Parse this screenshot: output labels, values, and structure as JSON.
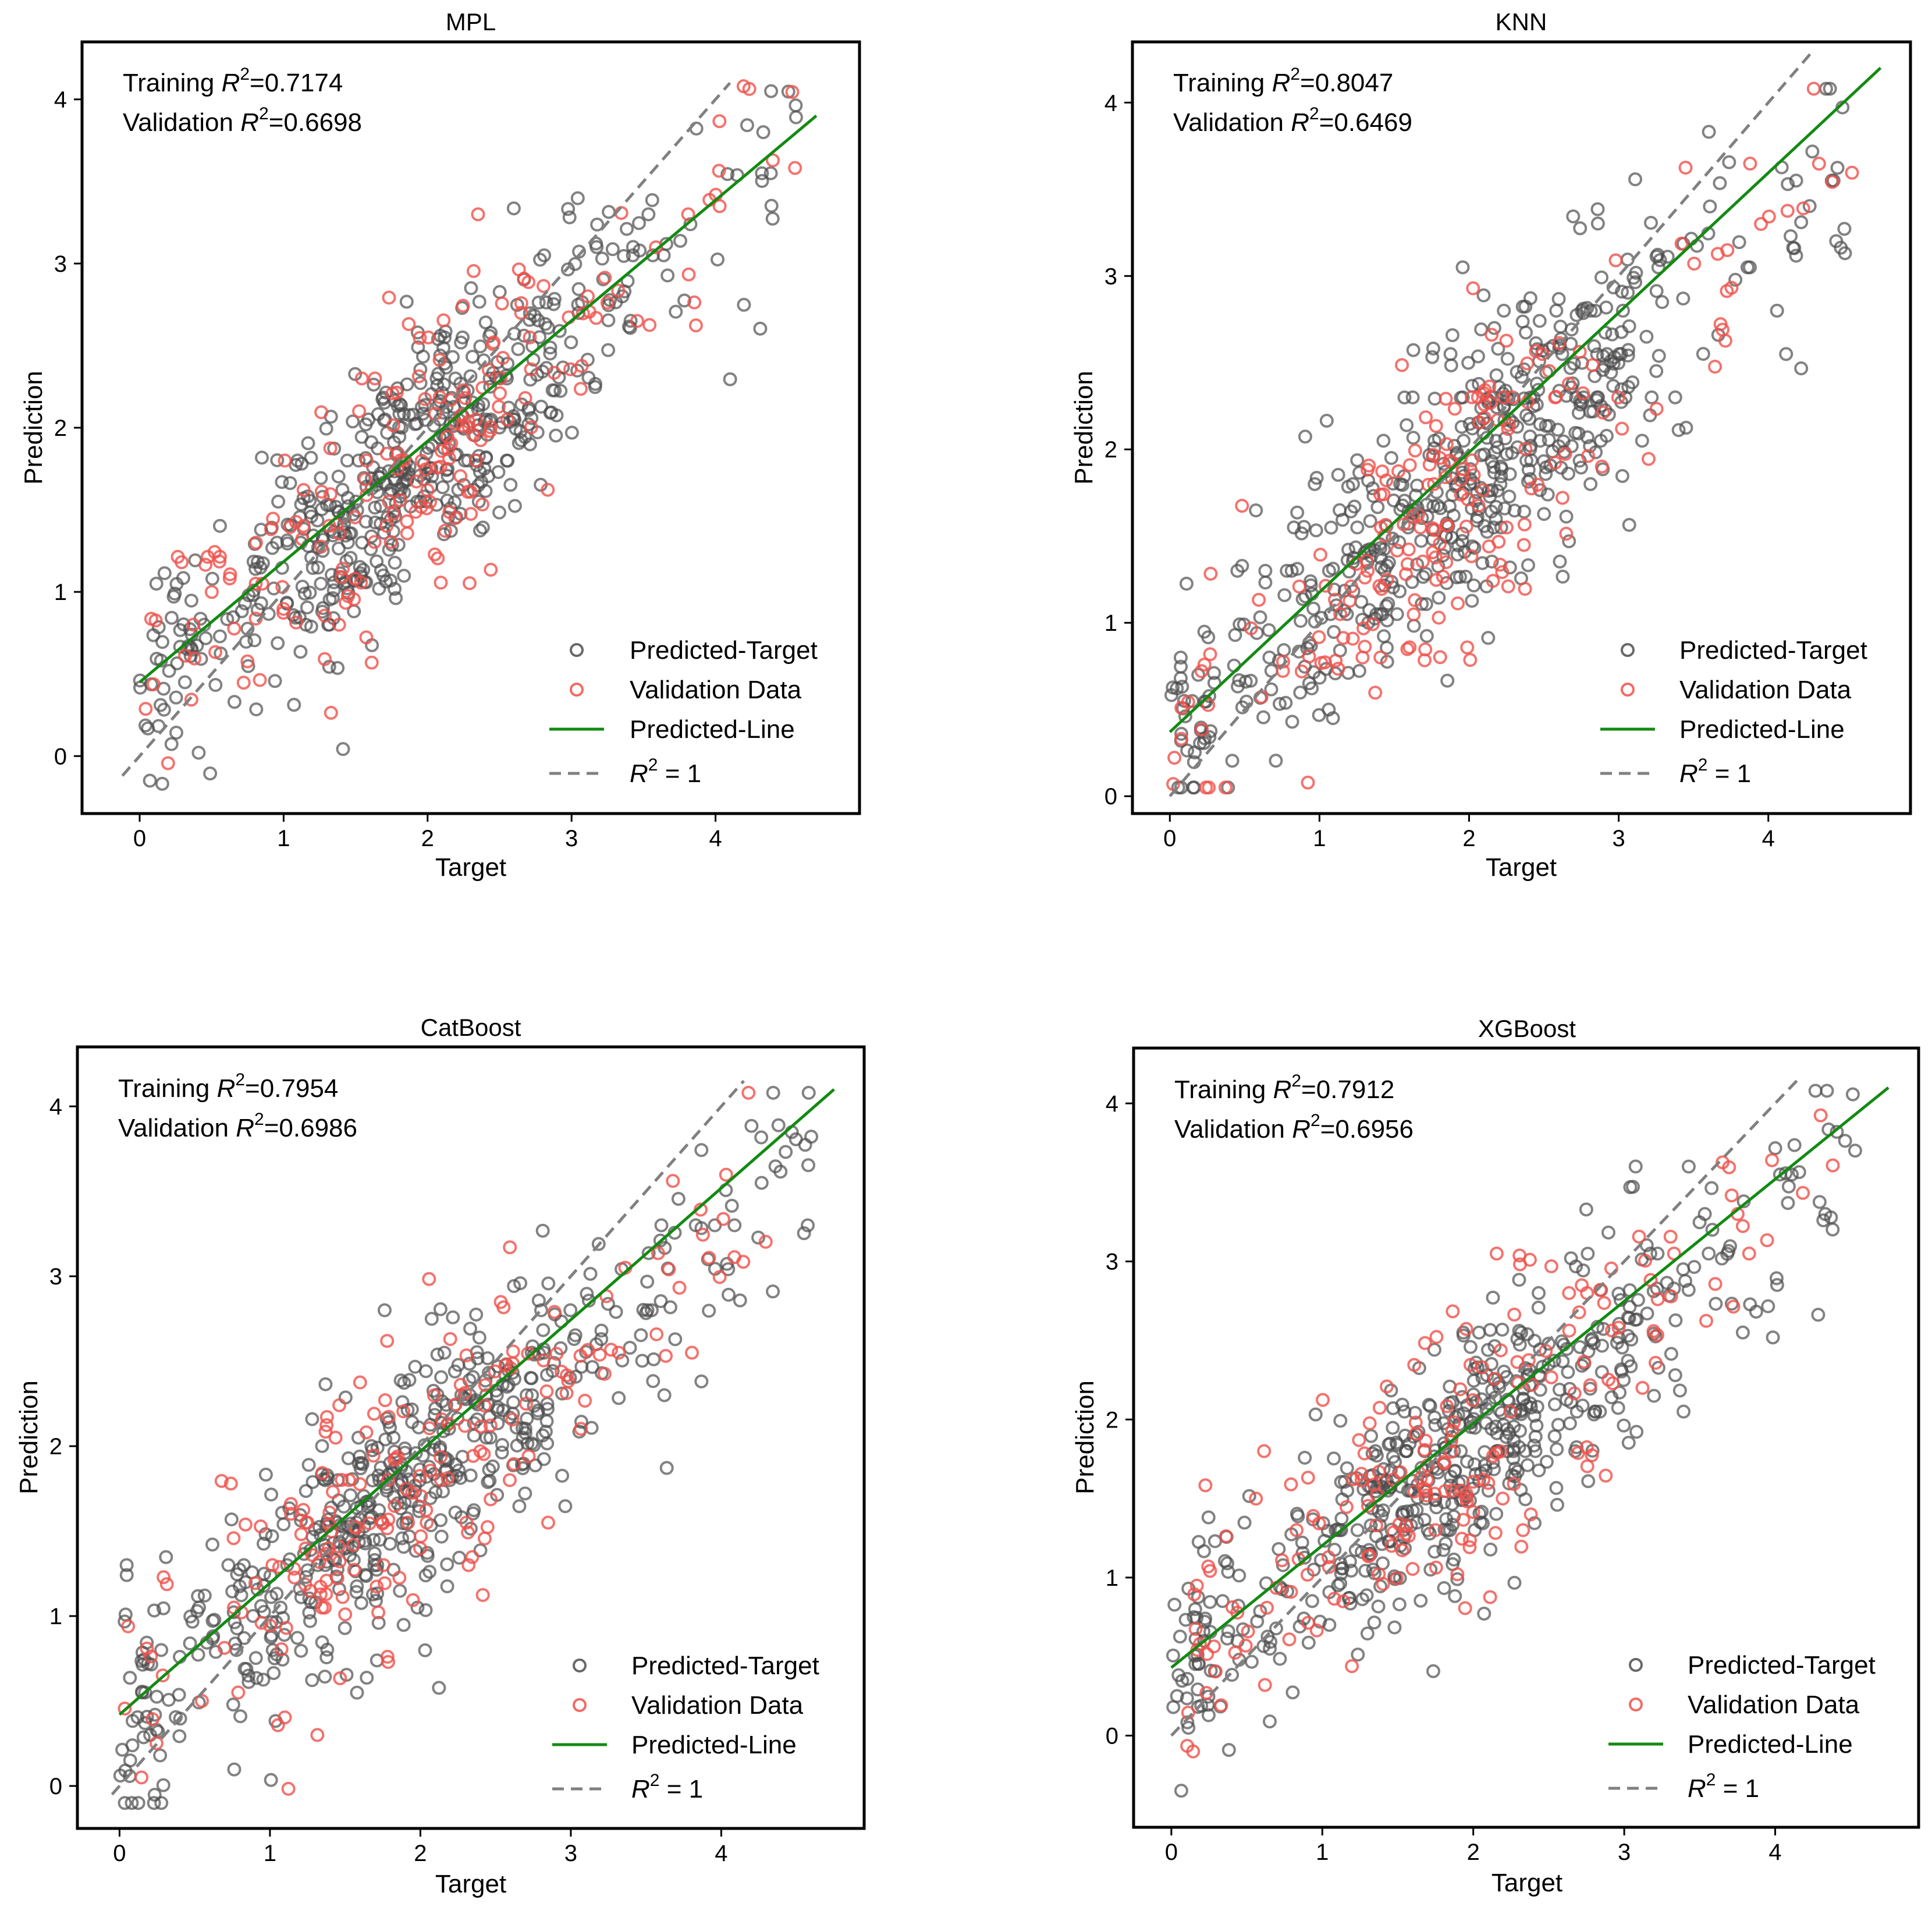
{
  "figure": {
    "panel_count": 4
  },
  "legend": {
    "items": [
      "Predicted-Target",
      "Validation Data",
      "Predicted-Line",
      "R^2 = 1"
    ],
    "ideal_label_prefix": "R",
    "ideal_label_exp": "2",
    "ideal_label_suffix": " = 1"
  },
  "colors": {
    "train": "#4d4d4d",
    "validation": "#f0504a",
    "fit": "#138a13",
    "ideal": "#808080"
  },
  "chart_data": [
    {
      "type": "scatter",
      "title": "MPL",
      "xlabel": "Target",
      "ylabel": "Prediction",
      "xlim": [
        -0.4,
        5.0
      ],
      "ylim": [
        -0.35,
        4.35
      ],
      "xticks": [
        0,
        1,
        2,
        3,
        4
      ],
      "yticks": [
        0,
        1,
        2,
        3,
        4
      ],
      "training_r2_label": "Training",
      "training_r2_value": "=0.7174",
      "validation_r2_label": "Validation",
      "validation_r2_value": "=0.6698",
      "fit_line": {
        "x": [
          0.0,
          4.7
        ],
        "y": [
          0.45,
          3.9
        ]
      },
      "ideal_line": {
        "x": [
          -0.12,
          4.1
        ],
        "y": [
          -0.12,
          4.1
        ]
      },
      "legend_position": "lower-right",
      "seed": 11
    },
    {
      "type": "scatter",
      "title": "KNN",
      "xlabel": "Target",
      "ylabel": "Prediction",
      "xlim": [
        -0.25,
        4.95
      ],
      "ylim": [
        -0.1,
        4.35
      ],
      "xticks": [
        0,
        1,
        2,
        3,
        4
      ],
      "yticks": [
        0,
        1,
        2,
        3,
        4
      ],
      "training_r2_label": "Training",
      "training_r2_value": "=0.8047",
      "validation_r2_label": "Validation",
      "validation_r2_value": "=0.6469",
      "fit_line": {
        "x": [
          0.0,
          4.75
        ],
        "y": [
          0.37,
          4.2
        ]
      },
      "ideal_line": {
        "x": [
          0.0,
          4.3
        ],
        "y": [
          0.0,
          4.3
        ]
      },
      "legend_position": "lower-right",
      "seed": 23
    },
    {
      "type": "scatter",
      "title": "CatBoost",
      "xlabel": "Target",
      "ylabel": "Prediction",
      "xlim": [
        -0.28,
        4.95
      ],
      "ylim": [
        -0.25,
        4.35
      ],
      "xticks": [
        0,
        1,
        2,
        3,
        4
      ],
      "yticks": [
        0,
        1,
        2,
        3,
        4
      ],
      "training_r2_label": "Training",
      "training_r2_value": "=0.7954",
      "validation_r2_label": "Validation",
      "validation_r2_value": "=0.6986",
      "fit_line": {
        "x": [
          0.0,
          4.75
        ],
        "y": [
          0.42,
          4.1
        ]
      },
      "ideal_line": {
        "x": [
          -0.05,
          4.15
        ],
        "y": [
          -0.05,
          4.15
        ]
      },
      "legend_position": "lower-right",
      "seed": 37
    },
    {
      "type": "scatter",
      "title": "XGBoost",
      "xlabel": "Target",
      "ylabel": "Prediction",
      "xlim": [
        -0.25,
        4.95
      ],
      "ylim": [
        -0.58,
        4.35
      ],
      "xticks": [
        0,
        1,
        2,
        3,
        4
      ],
      "yticks": [
        0,
        1,
        2,
        3,
        4
      ],
      "training_r2_label": "Training",
      "training_r2_value": "=0.7912",
      "validation_r2_label": "Validation",
      "validation_r2_value": "=0.6956",
      "fit_line": {
        "x": [
          0.0,
          4.75
        ],
        "y": [
          0.43,
          4.1
        ]
      },
      "ideal_line": {
        "x": [
          0.0,
          4.15
        ],
        "y": [
          0.0,
          4.15
        ]
      },
      "legend_position": "lower-right",
      "seed": 53
    }
  ]
}
